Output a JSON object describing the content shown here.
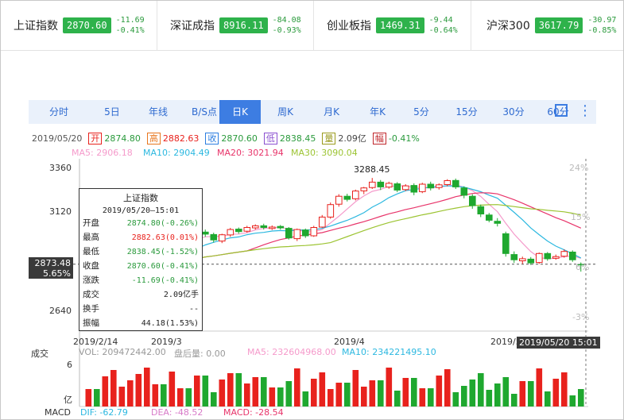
{
  "indices": [
    {
      "name": "上证指数",
      "price": "2870.60",
      "change": "-11.69",
      "pct": "-0.41%"
    },
    {
      "name": "深证成指",
      "price": "8916.11",
      "change": "-84.08",
      "pct": "-0.93%"
    },
    {
      "name": "创业板指",
      "price": "1469.31",
      "change": "-9.44",
      "pct": "-0.64%"
    },
    {
      "name": "沪深300",
      "price": "3617.79",
      "change": "-30.97",
      "pct": "-0.85%"
    }
  ],
  "tabs": [
    "分时",
    "5日",
    "年线",
    "B/S点",
    "日K",
    "周K",
    "月K",
    "年K",
    "5分",
    "15分",
    "30分",
    "60分"
  ],
  "active_tab": "日K",
  "quote": {
    "date": "2019/05/20",
    "open_label": "开",
    "open": "2874.80",
    "high_label": "高",
    "high": "2882.63",
    "close_label": "收",
    "close": "2870.60",
    "low_label": "低",
    "low": "2838.45",
    "vol_label": "量",
    "vol": "2.09亿",
    "amp_label": "幅",
    "amp": "-0.41%"
  },
  "ma": {
    "ma5": "MA5: 2906.18",
    "ma10": "MA10: 2904.49",
    "ma20": "MA20: 3021.94",
    "ma30": "MA30: 3090.04"
  },
  "colors": {
    "up": "#e8221d",
    "down": "#1fa82f",
    "ma5": "#f59acb",
    "ma10": "#2cb8e0",
    "ma20": "#e8346a",
    "ma30": "#9cc432",
    "accent": "#3d7de2"
  },
  "tooltip": {
    "title": "上证指数",
    "datetime": "2019/05/20—15:01",
    "rows": [
      {
        "label": "开盘",
        "value": "2874.80(-0.26%)"
      },
      {
        "label": "最高",
        "value": "2882.63(0.01%)"
      },
      {
        "label": "最低",
        "value": "2838.45(-1.52%)"
      },
      {
        "label": "收盘",
        "value": "2870.60(-0.41%)"
      },
      {
        "label": "涨跌",
        "value": "-11.69(-0.41%)"
      },
      {
        "label": "成交",
        "value": "2.09亿手"
      },
      {
        "label": "换手",
        "value": "--"
      },
      {
        "label": "振幅",
        "value": "44.18(1.53%)"
      }
    ]
  },
  "price_axis": {
    "left_ticks": [
      "3360",
      "3120",
      "2640"
    ],
    "right_ticks": [
      "24%",
      "15%",
      "6%",
      "-3%"
    ],
    "crosshair_price": "2873.48",
    "crosshair_pct": "5.65%",
    "peak_label": "3288.45"
  },
  "date_axis": {
    "labels": [
      "2019/2/14",
      "2019/3",
      "2019/4",
      "2019/5"
    ],
    "crosshair_date": "2019/05/20 15:01"
  },
  "volume": {
    "title": "成交",
    "vol": "VOL: 209472442.00",
    "after": "盘后量: 0.00",
    "ma5": "MA5: 232604968.00",
    "ma10": "MA10: 234221495.10",
    "y_top": "6",
    "y_unit": "亿"
  },
  "macd": {
    "title": "MACD",
    "dif": "DIF: -62.79",
    "dea": "DEA: -48.52",
    "macd": "MACD: -28.54"
  },
  "chart_data": {
    "type": "candlestick",
    "ylim": [
      2560,
      3380
    ],
    "candles": [
      [
        2740,
        2765,
        2725,
        2778,
        1
      ],
      [
        2765,
        2754,
        2745,
        2775,
        0
      ],
      [
        2752,
        2790,
        2748,
        2798,
        1
      ],
      [
        2792,
        2808,
        2785,
        2818,
        1
      ],
      [
        2810,
        2850,
        2805,
        2860,
        1
      ],
      [
        2850,
        2862,
        2838,
        2872,
        1
      ],
      [
        2860,
        2900,
        2852,
        2912,
        1
      ],
      [
        2902,
        2940,
        2895,
        2950,
        1
      ],
      [
        2945,
        2985,
        2938,
        2995,
        1
      ],
      [
        2984,
        2945,
        2935,
        2992,
        0
      ],
      [
        2948,
        2985,
        2940,
        2996,
        1
      ],
      [
        2990,
        3010,
        2980,
        3022,
        1
      ],
      [
        3012,
        2990,
        2982,
        3020,
        0
      ],
      [
        2992,
        3025,
        2985,
        3032,
        1
      ],
      [
        3028,
        3018,
        3005,
        3040,
        0
      ],
      [
        3016,
        2990,
        2978,
        3025,
        0
      ],
      [
        2985,
        3015,
        2975,
        3020,
        1
      ],
      [
        3014,
        3040,
        3005,
        3048,
        1
      ],
      [
        3042,
        3030,
        3020,
        3050,
        0
      ],
      [
        3032,
        3050,
        3025,
        3058,
        1
      ],
      [
        3048,
        3058,
        3040,
        3065,
        1
      ],
      [
        3058,
        3050,
        3040,
        3068,
        0
      ],
      [
        3045,
        3052,
        3038,
        3060,
        1
      ],
      [
        3055,
        3048,
        3040,
        3062,
        0
      ],
      [
        3046,
        3000,
        2992,
        3052,
        0
      ],
      [
        2996,
        3040,
        2985,
        3045,
        1
      ],
      [
        3038,
        3010,
        3000,
        3045,
        0
      ],
      [
        3010,
        3050,
        3005,
        3058,
        1
      ],
      [
        3052,
        3100,
        3048,
        3110,
        1
      ],
      [
        3100,
        3160,
        3092,
        3170,
        1
      ],
      [
        3162,
        3200,
        3150,
        3210,
        1
      ],
      [
        3200,
        3185,
        3175,
        3212,
        0
      ],
      [
        3188,
        3225,
        3180,
        3232,
        1
      ],
      [
        3226,
        3240,
        3210,
        3245,
        1
      ],
      [
        3242,
        3268,
        3235,
        3288,
        1
      ],
      [
        3268,
        3245,
        3230,
        3278,
        0
      ],
      [
        3244,
        3262,
        3236,
        3270,
        1
      ],
      [
        3260,
        3230,
        3220,
        3268,
        0
      ],
      [
        3232,
        3250,
        3225,
        3258,
        1
      ],
      [
        3252,
        3220,
        3205,
        3262,
        0
      ],
      [
        3222,
        3258,
        3215,
        3265,
        1
      ],
      [
        3258,
        3240,
        3228,
        3270,
        0
      ],
      [
        3242,
        3255,
        3232,
        3262,
        1
      ],
      [
        3256,
        3275,
        3248,
        3282,
        1
      ],
      [
        3276,
        3245,
        3235,
        3285,
        0
      ],
      [
        3240,
        3205,
        3190,
        3248,
        0
      ],
      [
        3200,
        3155,
        3140,
        3210,
        0
      ],
      [
        3150,
        3115,
        3100,
        3160,
        0
      ],
      [
        3110,
        3085,
        3075,
        3120,
        0
      ],
      [
        3080,
        3070,
        3055,
        3095,
        0
      ],
      [
        3020,
        2925,
        2910,
        3030,
        0
      ],
      [
        2920,
        2895,
        2880,
        2935,
        0
      ],
      [
        2890,
        2900,
        2875,
        2910,
        1
      ],
      [
        2898,
        2880,
        2870,
        2908,
        0
      ],
      [
        2882,
        2925,
        2875,
        2930,
        1
      ],
      [
        2925,
        2900,
        2890,
        2932,
        0
      ],
      [
        2902,
        2910,
        2895,
        2920,
        1
      ],
      [
        2912,
        2935,
        2905,
        2945,
        1
      ],
      [
        2932,
        2895,
        2885,
        2940,
        0
      ],
      [
        2874,
        2870,
        2838,
        2882,
        0
      ]
    ]
  }
}
